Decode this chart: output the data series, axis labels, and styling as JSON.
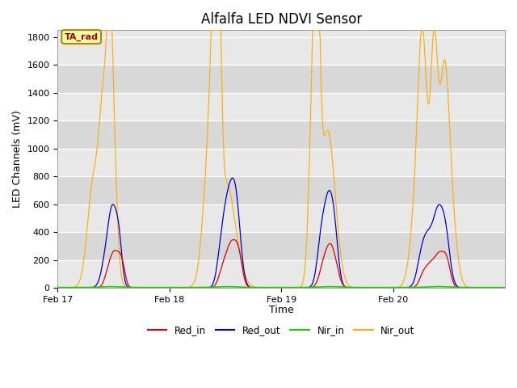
{
  "title": "Alfalfa LED NDVI Sensor",
  "ylabel": "LED Channels (mV)",
  "xlabel": "Time",
  "annotation": "TA_rad",
  "ylim": [
    0,
    1850
  ],
  "colors": {
    "Red_in": "#dd0000",
    "Red_out": "#0000cc",
    "Nir_in": "#22cc00",
    "Nir_out": "#ffaa00"
  },
  "xtick_labels": [
    "Feb 17",
    "Feb 18",
    "Feb 19",
    "Feb 20"
  ],
  "ytick_vals": [
    0,
    200,
    400,
    600,
    800,
    1000,
    1200,
    1400,
    1600,
    1800
  ],
  "n_points": 600
}
